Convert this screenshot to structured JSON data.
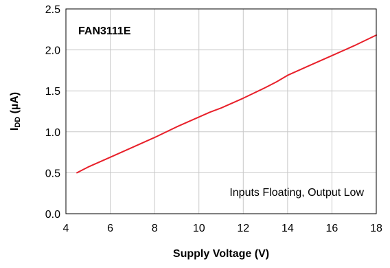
{
  "chart_data": {
    "type": "line",
    "title": "",
    "xlabel": "Supply Voltage (V)",
    "ylabel": {
      "main": "I",
      "subscript": "DD",
      "unit": " (µA)"
    },
    "xlim": [
      4,
      18
    ],
    "ylim": [
      0,
      2.5
    ],
    "xticks": [
      4,
      6,
      8,
      10,
      12,
      14,
      16,
      18
    ],
    "yticks": [
      0,
      0.5,
      1,
      1.5,
      2,
      2.5
    ],
    "xtick_labels": [
      "4",
      "6",
      "8",
      "10",
      "12",
      "14",
      "16",
      "18"
    ],
    "ytick_labels": [
      "0.0",
      "0.5",
      "1.0",
      "1.5",
      "2.0",
      "2.5"
    ],
    "grid": true,
    "annotations": {
      "part_number": "FAN3111E",
      "condition": "Inputs Floating, Output Low"
    },
    "series": [
      {
        "color": "#e8202a",
        "x": [
          4.5,
          5.0,
          6.0,
          7.0,
          8.0,
          9.0,
          10.0,
          10.5,
          11.0,
          12.0,
          13.0,
          13.5,
          14.0,
          15.0,
          16.0,
          17.0,
          18.0
        ],
        "y": [
          0.5,
          0.57,
          0.69,
          0.81,
          0.93,
          1.06,
          1.18,
          1.24,
          1.29,
          1.41,
          1.54,
          1.61,
          1.69,
          1.81,
          1.93,
          2.05,
          2.18
        ]
      }
    ]
  }
}
